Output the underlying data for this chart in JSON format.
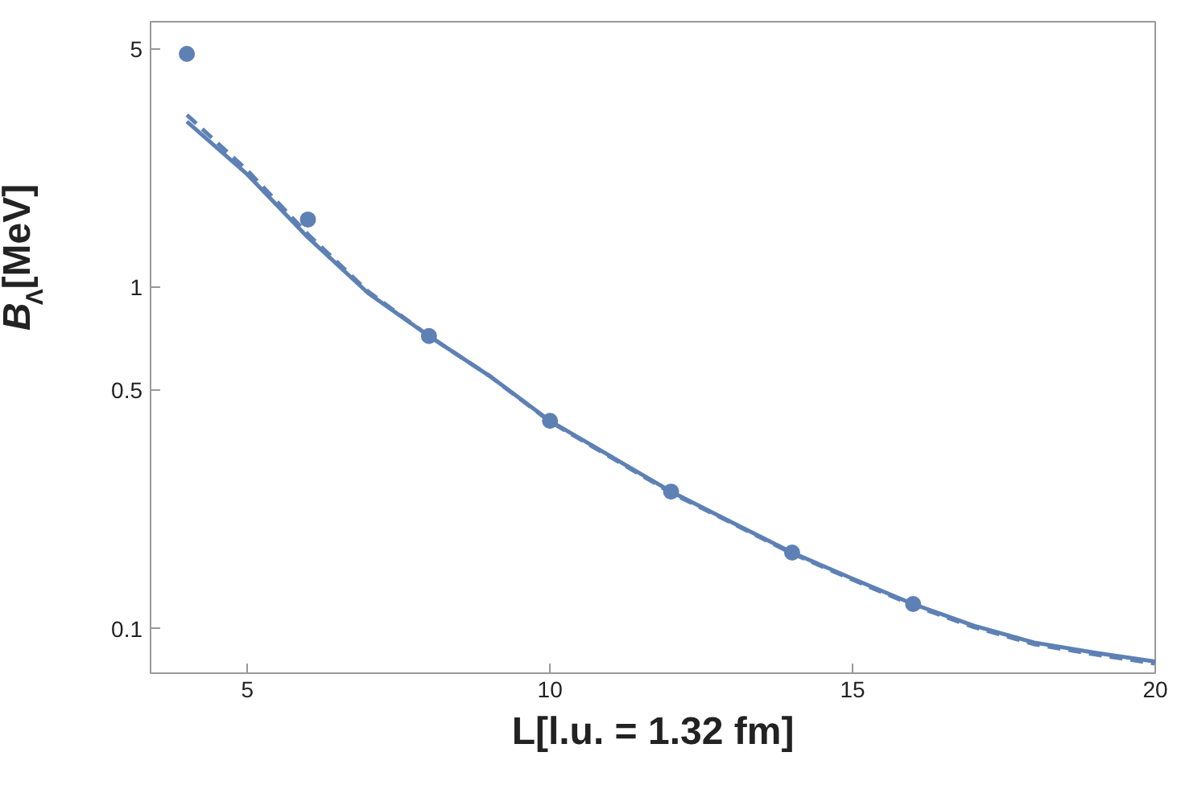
{
  "chart_data": {
    "type": "scatter",
    "xlabel": "L[l.u. = 1.32 fm]",
    "ylabel": "B$_{Λ}$[MeV]",
    "log": "y",
    "grid": false,
    "xlim": [
      3.4,
      20
    ],
    "ylim": [
      0.074,
      6
    ],
    "xticks": [
      5,
      10,
      15,
      20
    ],
    "yticks": [
      0.1,
      0.5,
      1,
      5
    ],
    "series": [
      {
        "marker": "circle",
        "color": "#5e81b5",
        "x": [
          4,
          6,
          8,
          10,
          12,
          14,
          16
        ],
        "values": [
          4.83,
          1.58,
          0.72,
          0.406,
          0.252,
          0.167,
          0.118
        ]
      },
      {
        "type": "line",
        "line_style": "solid",
        "color": "#5e81b5",
        "x": [
          4,
          5,
          6,
          7,
          8,
          9,
          10,
          11,
          12,
          13,
          14,
          15,
          16,
          17,
          18,
          19,
          20
        ],
        "values": [
          3.06,
          2.14,
          1.4,
          0.96,
          0.72,
          0.55,
          0.406,
          0.32,
          0.252,
          0.205,
          0.167,
          0.14,
          0.118,
          0.102,
          0.091,
          0.085,
          0.08
        ]
      },
      {
        "type": "line",
        "line_style": "dashed",
        "color": "#5e81b5",
        "x": [
          4,
          5,
          6,
          7,
          8,
          9,
          10,
          11,
          12,
          13,
          14,
          15,
          16,
          17,
          18,
          19,
          20
        ],
        "values": [
          3.2,
          2.2,
          1.43,
          0.97,
          0.72,
          0.55,
          0.404,
          0.318,
          0.25,
          0.204,
          0.166,
          0.139,
          0.117,
          0.101,
          0.09,
          0.084,
          0.079
        ]
      }
    ]
  }
}
